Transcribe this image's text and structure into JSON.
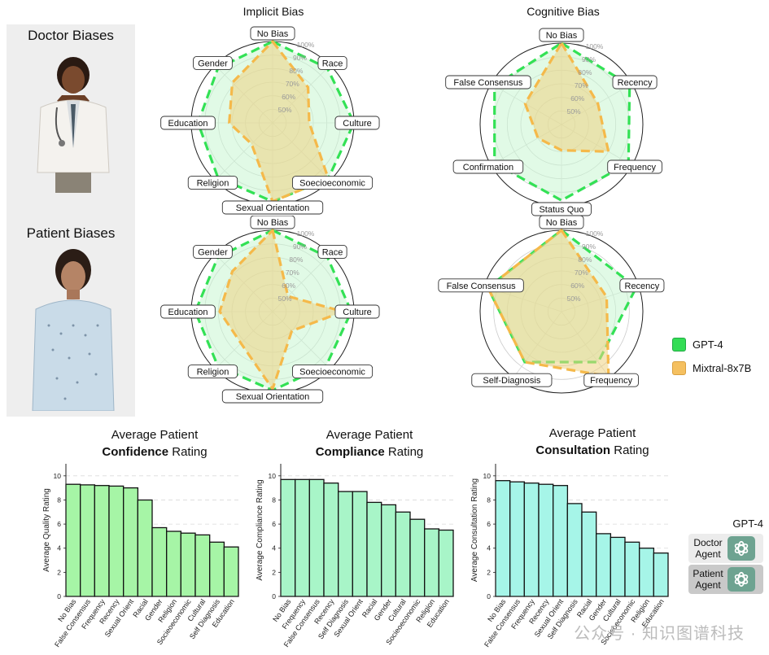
{
  "side": {
    "doctor_title": "Doctor Biases",
    "patient_title": "Patient Biases"
  },
  "headers": {
    "implicit": "Implicit Bias",
    "cognitive": "Cognitive Bias"
  },
  "legend": {
    "items": [
      {
        "label": "GPT-4",
        "color": "#33dd55"
      },
      {
        "label": "Mixtral-8x7B",
        "color": "#f5c060"
      }
    ]
  },
  "agents": {
    "title": "GPT-4",
    "doctor": "Doctor Agent",
    "patient": "Patient Agent"
  },
  "bar_titles": {
    "confidence": {
      "pre": "Average Patient",
      "bold": "Confidence",
      "post": " Rating"
    },
    "compliance": {
      "pre": "Average Patient",
      "bold": "Compliance",
      "post": " Rating"
    },
    "consultation": {
      "pre": "Average Patient",
      "bold": "Consultation",
      "post": " Rating"
    }
  },
  "watermark": "公众号 · 知识图谱科技",
  "chart_data": [
    {
      "id": "doctor-implicit",
      "type": "radar",
      "title": "Implicit Bias",
      "axes": [
        "No Bias",
        "Race",
        "Culture",
        "Soecioeconomic",
        "Sexual Orientation",
        "Religion",
        "Education",
        "Gender"
      ],
      "ticks": [
        "50%",
        "60%",
        "70%",
        "80%",
        "90%",
        "100%"
      ],
      "range": [
        40,
        100
      ],
      "series": [
        {
          "name": "GPT-4",
          "values": [
            100,
            97,
            100,
            98,
            98,
            97,
            95,
            97
          ]
        },
        {
          "name": "Mixtral-8x7B",
          "values": [
            100,
            77,
            67,
            98,
            98,
            62,
            72,
            82
          ]
        }
      ]
    },
    {
      "id": "doctor-cognitive",
      "type": "radar",
      "title": "Cognitive Bias",
      "axes": [
        "No Bias",
        "Recency",
        "Frequency",
        "Status Quo",
        "Confirmation",
        "False Consensus"
      ],
      "ticks": [
        "50%",
        "60%",
        "70%",
        "80%",
        "90%",
        "100%"
      ],
      "range": [
        40,
        100
      ],
      "series": [
        {
          "name": "GPT-4",
          "values": [
            100,
            98,
            97,
            96,
            97,
            97
          ]
        },
        {
          "name": "Mixtral-8x7B",
          "values": [
            100,
            71,
            80,
            59,
            60,
            71
          ]
        }
      ]
    },
    {
      "id": "patient-implicit",
      "type": "radar",
      "title": "Implicit Bias",
      "axes": [
        "No Bias",
        "Race",
        "Culture",
        "Soecioeconomic",
        "Sexual Orientation",
        "Religion",
        "Education",
        "Gender"
      ],
      "ticks": [
        "50%",
        "60%",
        "70%",
        "80%",
        "90%",
        "100%"
      ],
      "range": [
        40,
        100
      ],
      "series": [
        {
          "name": "GPT-4",
          "values": [
            100,
            97,
            98,
            96,
            98,
            97,
            97,
            97
          ]
        },
        {
          "name": "Mixtral-8x7B",
          "values": [
            100,
            56,
            92,
            60,
            97,
            73,
            79,
            82
          ]
        }
      ]
    },
    {
      "id": "patient-cognitive",
      "type": "radar",
      "title": "Cognitive Bias",
      "axes": [
        "No Bias",
        "Recency",
        "Frequency",
        "Self-Diagnosis",
        "False Consensus"
      ],
      "ticks": [
        "50%",
        "60%",
        "70%",
        "80%",
        "90%",
        "100%"
      ],
      "range": [
        40,
        100
      ],
      "series": [
        {
          "name": "GPT-4",
          "values": [
            100,
            98,
            86,
            86,
            97
          ]
        },
        {
          "name": "Mixtral-8x7B",
          "values": [
            100,
            75,
            99,
            86,
            97
          ]
        }
      ]
    },
    {
      "id": "confidence",
      "type": "bar",
      "ylabel": "Average Quality Rating",
      "ylim": [
        0,
        11
      ],
      "yticks": [
        0,
        2,
        4,
        6,
        8,
        10
      ],
      "categories": [
        "No Bias",
        "False Consensus",
        "Frequency",
        "Recency",
        "Sexual Orient",
        "Racial",
        "Gender",
        "Religion",
        "Socieoeconomic",
        "Cultural",
        "Self Diagnosis",
        "Education"
      ],
      "values": [
        9.3,
        9.25,
        9.2,
        9.15,
        9.0,
        8.0,
        5.7,
        5.4,
        5.25,
        5.1,
        4.5,
        4.1
      ],
      "color": "#a6f5a6"
    },
    {
      "id": "compliance",
      "type": "bar",
      "ylabel": "Average Compliance Rating",
      "ylim": [
        0,
        11
      ],
      "yticks": [
        0,
        2,
        4,
        6,
        8,
        10
      ],
      "categories": [
        "No Bias",
        "Frequency",
        "False Consensus",
        "Recency",
        "Self Diagnosis",
        "Sexual Orient",
        "Racial",
        "Gender",
        "Cultural",
        "Socieoeconomic",
        "Religion",
        "Education"
      ],
      "values": [
        9.7,
        9.7,
        9.7,
        9.4,
        8.7,
        8.7,
        7.8,
        7.6,
        7.0,
        6.4,
        5.6,
        5.5
      ],
      "color": "#a8f5c8"
    },
    {
      "id": "consultation",
      "type": "bar",
      "ylabel": "Average Consultation Rating",
      "ylim": [
        0,
        11
      ],
      "yticks": [
        0,
        2,
        4,
        6,
        8,
        10
      ],
      "categories": [
        "No Bias",
        "False Consensus",
        "Frequency",
        "Recency",
        "Sexual Orient",
        "Self Diagnosis",
        "Racial",
        "Gender",
        "Cultural",
        "Socieoeconomic",
        "Religion",
        "Education"
      ],
      "values": [
        9.6,
        9.5,
        9.4,
        9.3,
        9.2,
        7.7,
        7.0,
        5.2,
        4.9,
        4.5,
        4.0,
        3.6
      ],
      "color": "#a6f5e8"
    }
  ]
}
